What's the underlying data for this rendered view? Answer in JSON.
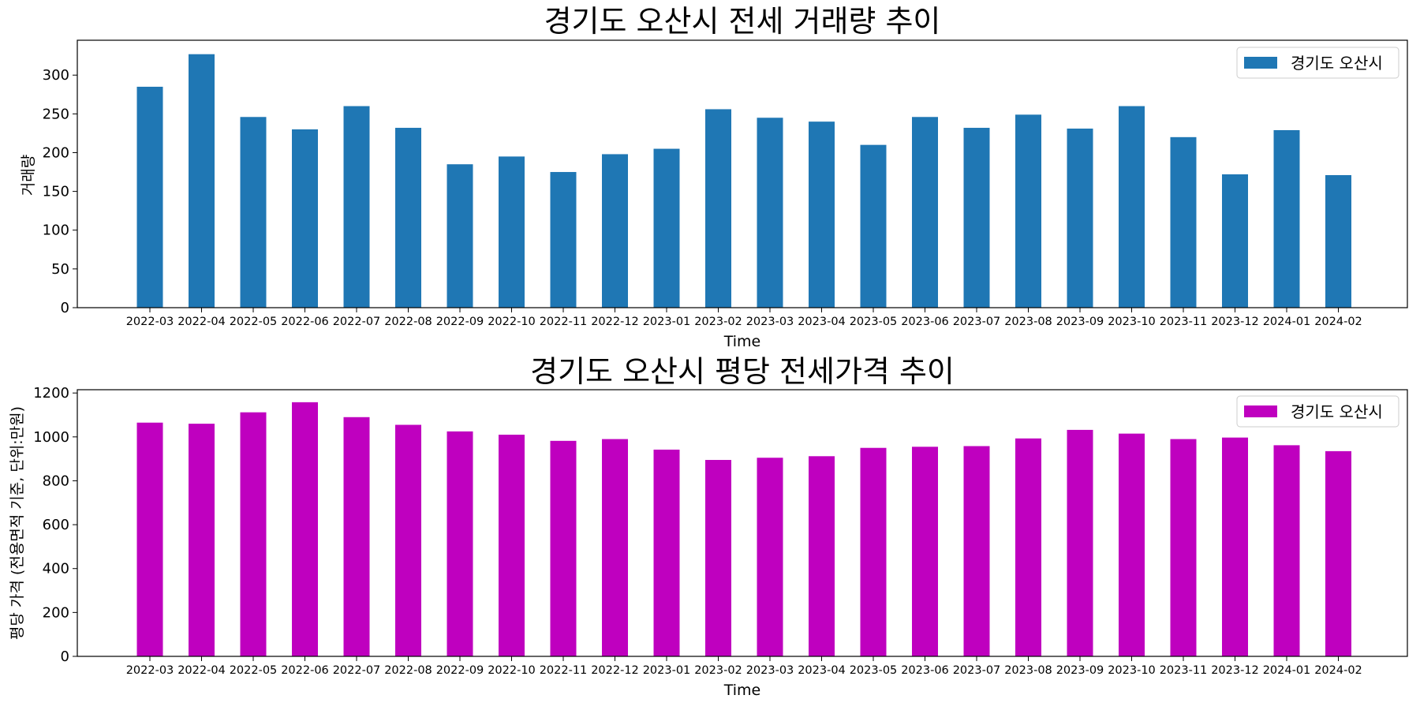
{
  "chart_data": [
    {
      "type": "bar",
      "title": "경기도 오산시 전세 거래량 추이",
      "xlabel": "Time",
      "ylabel": "거래량",
      "ylim": [
        0,
        345
      ],
      "yticks": [
        0,
        50,
        100,
        150,
        200,
        250,
        300
      ],
      "grid": false,
      "legend_position": "top-right",
      "categories": [
        "2022-03",
        "2022-04",
        "2022-05",
        "2022-06",
        "2022-07",
        "2022-08",
        "2022-09",
        "2022-10",
        "2022-11",
        "2022-12",
        "2023-01",
        "2023-02",
        "2023-03",
        "2023-04",
        "2023-05",
        "2023-06",
        "2023-07",
        "2023-08",
        "2023-09",
        "2023-10",
        "2023-11",
        "2023-12",
        "2024-01",
        "2024-02"
      ],
      "series": [
        {
          "name": "경기도 오산시",
          "color": "#1f77b4",
          "values": [
            285,
            327,
            246,
            230,
            260,
            232,
            185,
            195,
            175,
            198,
            205,
            256,
            245,
            240,
            210,
            246,
            232,
            249,
            231,
            260,
            220,
            172,
            229,
            171
          ]
        }
      ]
    },
    {
      "type": "bar",
      "title": "경기도 오산시 평당 전세가격 추이",
      "xlabel": "Time",
      "ylabel": "평당 가격 (전용면적 기준, 단위:만원)",
      "ylim": [
        0,
        1215
      ],
      "yticks": [
        0,
        200,
        400,
        600,
        800,
        1000,
        1200
      ],
      "grid": false,
      "legend_position": "top-right",
      "categories": [
        "2022-03",
        "2022-04",
        "2022-05",
        "2022-06",
        "2022-07",
        "2022-08",
        "2022-09",
        "2022-10",
        "2022-11",
        "2022-12",
        "2023-01",
        "2023-02",
        "2023-03",
        "2023-04",
        "2023-05",
        "2023-06",
        "2023-07",
        "2023-08",
        "2023-09",
        "2023-10",
        "2023-11",
        "2023-12",
        "2024-01",
        "2024-02"
      ],
      "series": [
        {
          "name": "경기도 오산시",
          "color": "#bf00bf",
          "values": [
            1065,
            1060,
            1112,
            1158,
            1090,
            1055,
            1025,
            1010,
            982,
            990,
            942,
            895,
            905,
            912,
            950,
            955,
            958,
            993,
            1032,
            1015,
            990,
            997,
            962,
            935
          ]
        }
      ]
    }
  ]
}
